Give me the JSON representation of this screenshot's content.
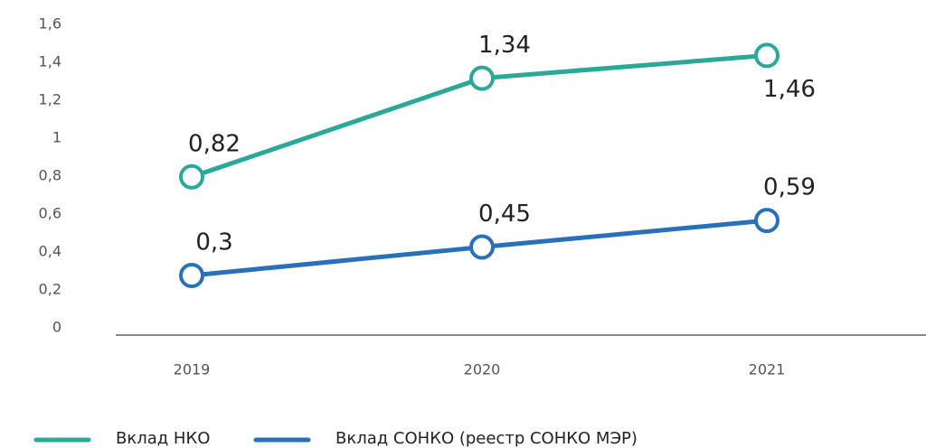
{
  "chart_data": {
    "type": "line",
    "categories": [
      "2019",
      "2020",
      "2021"
    ],
    "series": [
      {
        "name": "Вклад НКО",
        "color": "#2aa898",
        "values": [
          0.82,
          1.34,
          1.46
        ],
        "value_labels": [
          "0,82",
          "1,34",
          "1,46"
        ]
      },
      {
        "name": "Вклад СОНКО (реестр СОНКО МЭР)",
        "color": "#2a6fba",
        "values": [
          0.3,
          0.45,
          0.59
        ],
        "value_labels": [
          "0,3",
          "0,45",
          "0,59"
        ]
      }
    ],
    "ylim": [
      0,
      1.6
    ],
    "yticks": [
      0,
      {
        "value": 0.2,
        "label": "0,2"
      },
      {
        "value": 0.4,
        "label": "0,4"
      },
      {
        "value": 0.6,
        "label": "0,6"
      },
      {
        "value": 0.8,
        "label": "0,8"
      },
      1,
      {
        "value": 1.2,
        "label": "1,2"
      },
      {
        "value": 1.4,
        "label": "1,4"
      },
      {
        "value": 1.6,
        "label": "1,6"
      }
    ],
    "grid": false,
    "legend": "bottom"
  }
}
